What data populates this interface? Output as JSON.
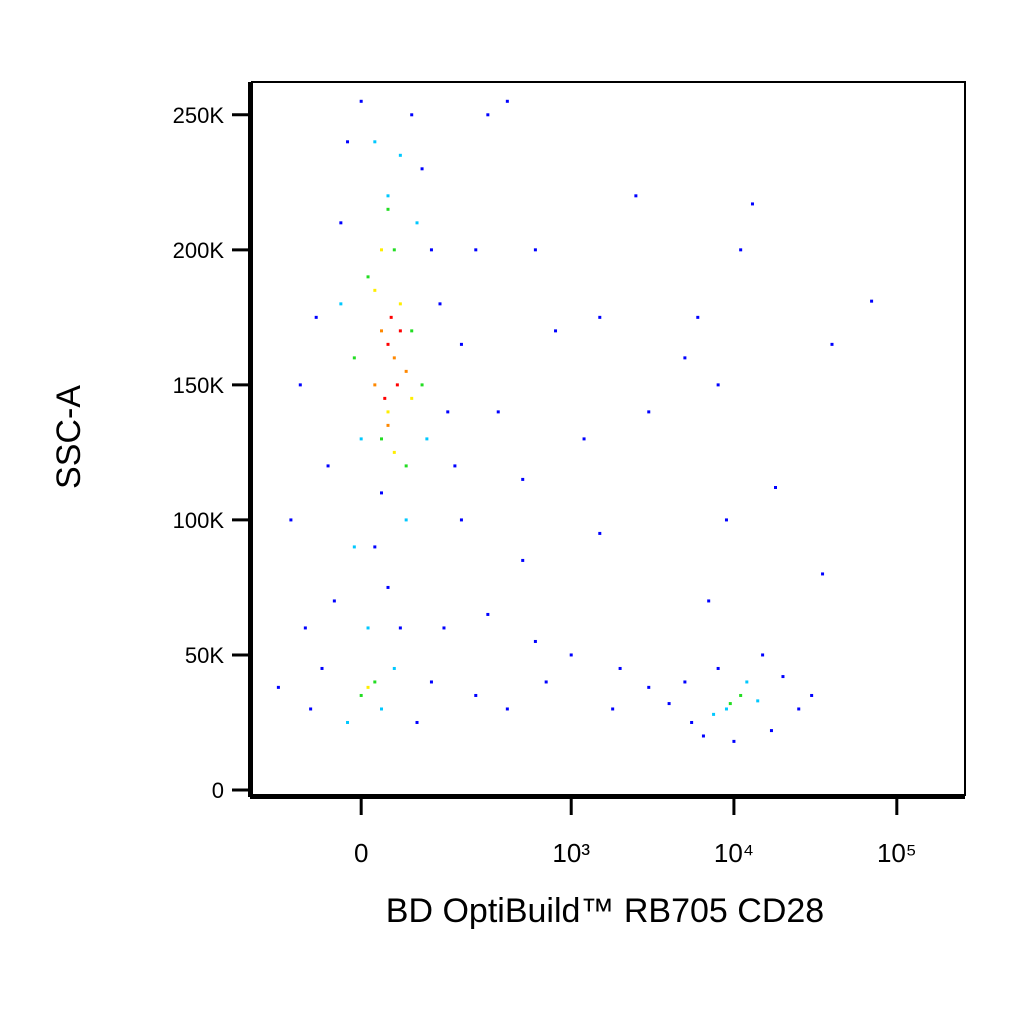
{
  "chart_data": {
    "type": "scatter",
    "xlabel": "BD OptiBuild™ RB705 CD28",
    "ylabel": "SSC-A",
    "xscale": "asinh",
    "xlim": [
      -230,
      262144
    ],
    "ylim": [
      0,
      262144
    ],
    "xticks": [
      0,
      {
        "value": 1000,
        "label": "10³"
      },
      {
        "value": 10000,
        "label": "10⁴"
      },
      {
        "value": 100000,
        "label": "10⁵"
      }
    ],
    "yticks": [
      0,
      {
        "value": 50000,
        "label": "50K"
      },
      {
        "value": 100000,
        "label": "100K"
      },
      {
        "value": 150000,
        "label": "150K"
      },
      {
        "value": 200000,
        "label": "200K"
      },
      {
        "value": 250000,
        "label": "250K"
      }
    ],
    "series": [
      {
        "color": "#0000ff",
        "x": [
          -150,
          -80,
          -60,
          -40,
          -100,
          -70,
          -50,
          -30,
          -20,
          0,
          20,
          40,
          60,
          30,
          80,
          100,
          120,
          140,
          160,
          180,
          200,
          150,
          120,
          90,
          250,
          300,
          400,
          600,
          800,
          1200,
          1500,
          2500,
          3000,
          5000,
          8000,
          11000,
          13000,
          40000,
          70000,
          35000,
          18000,
          9000,
          7000,
          1000,
          700,
          400,
          600,
          2000,
          3000,
          4000,
          1800,
          250,
          300,
          500,
          5500,
          6500,
          8000,
          15000,
          20000,
          25000,
          17000,
          5000,
          30000,
          10000,
          500,
          350,
          1500,
          6000,
          200,
          -120,
          -90
        ],
        "y": [
          38000,
          30000,
          45000,
          70000,
          150000,
          175000,
          120000,
          210000,
          240000,
          255000,
          90000,
          75000,
          60000,
          110000,
          250000,
          230000,
          200000,
          180000,
          140000,
          120000,
          100000,
          60000,
          40000,
          25000,
          200000,
          250000,
          255000,
          200000,
          170000,
          130000,
          95000,
          220000,
          140000,
          160000,
          150000,
          200000,
          217000,
          165000,
          181000,
          80000,
          112000,
          100000,
          70000,
          50000,
          40000,
          30000,
          55000,
          45000,
          38000,
          32000,
          30000,
          35000,
          65000,
          85000,
          25000,
          20000,
          45000,
          50000,
          42000,
          30000,
          22000,
          40000,
          35000,
          18000,
          115000,
          140000,
          175000,
          175000,
          165000,
          100000,
          60000
        ]
      },
      {
        "color": "#00c8ff",
        "x": [
          -30,
          0,
          40,
          70,
          90,
          20,
          10,
          50,
          -20,
          30,
          9000,
          12000,
          14000,
          7500,
          110,
          -10,
          60
        ],
        "y": [
          180000,
          130000,
          220000,
          100000,
          210000,
          240000,
          60000,
          45000,
          25000,
          30000,
          30000,
          40000,
          33000,
          28000,
          130000,
          90000,
          235000
        ]
      },
      {
        "color": "#22dd22",
        "x": [
          10,
          30,
          50,
          70,
          -10,
          80,
          0,
          20,
          11000,
          9500,
          40,
          100
        ],
        "y": [
          190000,
          130000,
          200000,
          120000,
          160000,
          170000,
          35000,
          40000,
          35000,
          32000,
          215000,
          150000
        ]
      },
      {
        "color": "#ffee00",
        "x": [
          20,
          40,
          60,
          30,
          10,
          50,
          80
        ],
        "y": [
          185000,
          140000,
          180000,
          200000,
          38000,
          125000,
          145000
        ]
      },
      {
        "color": "#ff8800",
        "x": [
          30,
          50,
          40,
          70,
          20
        ],
        "y": [
          170000,
          160000,
          135000,
          155000,
          150000
        ]
      },
      {
        "color": "#ff0000",
        "x": [
          40,
          55,
          45,
          35,
          60
        ],
        "y": [
          165000,
          150000,
          175000,
          145000,
          170000
        ]
      }
    ]
  }
}
